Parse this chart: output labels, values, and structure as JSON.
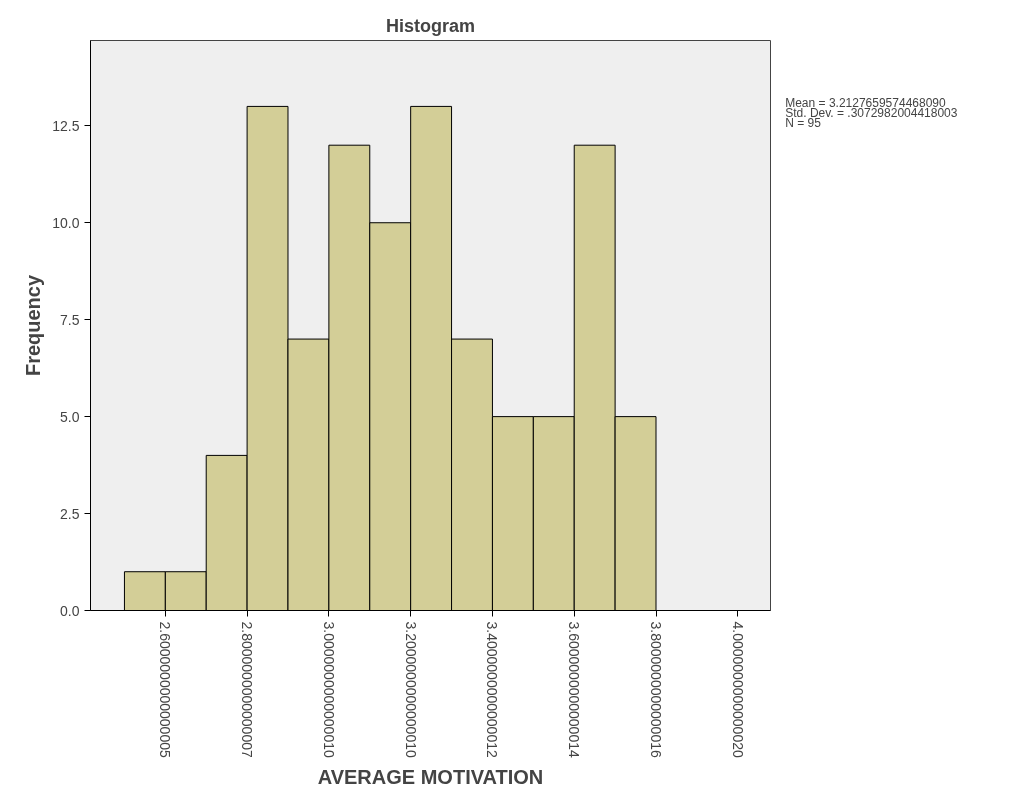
{
  "chart_data": {
    "type": "histogram",
    "title": "Histogram",
    "xlabel": "AVERAGE MOTIVATION",
    "ylabel": "Frequency",
    "bins": [
      2.5,
      2.6,
      2.7,
      2.8,
      2.9,
      3.0,
      3.1,
      3.2,
      3.3,
      3.4,
      3.5,
      3.6,
      3.7,
      3.8
    ],
    "values": [
      1,
      1,
      4,
      13,
      7,
      12,
      10,
      13,
      7,
      5,
      5,
      12,
      5
    ],
    "color": "#d3ce97",
    "xlim": [
      2.417,
      4.08
    ],
    "ylim": [
      0,
      14.7
    ],
    "xticks": [
      {
        "value": 2.6,
        "label": "2.6000000000000005"
      },
      {
        "value": 2.8,
        "label": "2.8000000000000007"
      },
      {
        "value": 3.0,
        "label": "3.0000000000000010"
      },
      {
        "value": 3.2,
        "label": "3.2000000000000010"
      },
      {
        "value": 3.4,
        "label": "3.4000000000000012"
      },
      {
        "value": 3.6,
        "label": "3.6000000000000014"
      },
      {
        "value": 3.8,
        "label": "3.8000000000000016"
      },
      {
        "value": 4.0,
        "label": "4.0000000000000020"
      }
    ],
    "yticks": [
      {
        "value": 0,
        "label": "0.0"
      },
      2.5,
      {
        "value": 5,
        "label": "5.0"
      },
      7.5,
      {
        "value": 10,
        "label": "10.0"
      },
      12.5
    ],
    "grid": false,
    "annotations": [
      "Mean = 3.2127659574468090",
      "Std. Dev. = .3072982004418003",
      "N = 95"
    ]
  }
}
